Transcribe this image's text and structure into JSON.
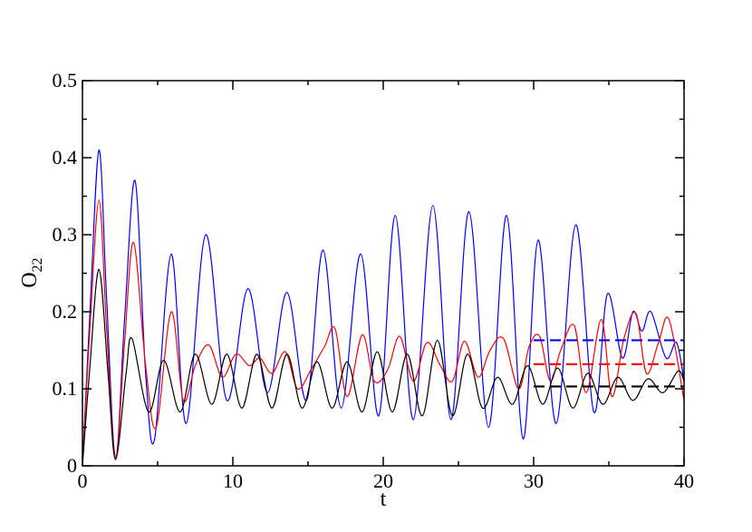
{
  "chart_data": {
    "type": "line",
    "xlabel": "t",
    "ylabel": "O",
    "ylabel_subscript": "22",
    "xlim": [
      0,
      40
    ],
    "ylim": [
      0,
      0.5
    ],
    "x_ticks": [
      0,
      10,
      20,
      30,
      40
    ],
    "x_tick_labels": [
      "0",
      "10",
      "20",
      "30",
      "40"
    ],
    "y_ticks": [
      0,
      0.1,
      0.2,
      0.3,
      0.4,
      0.5
    ],
    "y_tick_labels": [
      "0",
      "0.1",
      "0.2",
      "0.3",
      "0.4",
      "0.5"
    ],
    "grid": false,
    "legend": "none",
    "series": [
      {
        "color": "#0000ff",
        "style": "solid",
        "x": [
          0,
          0.5,
          1.1,
          1.6,
          2.2,
          2.8,
          3.5,
          4.2,
          4.8,
          5.9,
          6.9,
          8.2,
          9.6,
          11.0,
          12.3,
          13.6,
          14.9,
          16.0,
          17.2,
          18.5,
          19.7,
          20.8,
          22.0,
          23.3,
          24.5,
          25.7,
          27.0,
          28.2,
          29.3,
          30.3,
          31.5,
          32.8,
          34.0,
          34.9,
          35.9,
          36.6,
          37.2,
          37.8,
          38.8,
          39.5,
          40
        ],
        "y": [
          0,
          0.2,
          0.41,
          0.22,
          0.01,
          0.19,
          0.37,
          0.12,
          0.035,
          0.275,
          0.055,
          0.3,
          0.085,
          0.23,
          0.095,
          0.225,
          0.085,
          0.28,
          0.075,
          0.275,
          0.065,
          0.325,
          0.06,
          0.338,
          0.06,
          0.33,
          0.05,
          0.325,
          0.035,
          0.293,
          0.055,
          0.313,
          0.07,
          0.223,
          0.14,
          0.2,
          0.175,
          0.2,
          0.14,
          0.16,
          0.11
        ]
      },
      {
        "color": "#ff0000",
        "style": "solid",
        "x": [
          0,
          0.5,
          1.1,
          1.6,
          2.2,
          2.8,
          3.4,
          4.2,
          4.9,
          5.9,
          6.7,
          7.5,
          8.4,
          9.3,
          10.2,
          11.1,
          11.8,
          12.6,
          13.5,
          14.3,
          15.2,
          16.1,
          16.8,
          17.6,
          18.6,
          19.4,
          20.3,
          21.1,
          22.0,
          22.9,
          23.8,
          24.6,
          25.4,
          26.3,
          27.1,
          28.0,
          29.0,
          29.7,
          30.4,
          31.1,
          31.8,
          32.7,
          33.5,
          34.5,
          35.2,
          36.0,
          36.8,
          37.5,
          38.3,
          39.0,
          40
        ],
        "y": [
          0,
          0.18,
          0.345,
          0.18,
          0.01,
          0.16,
          0.29,
          0.13,
          0.05,
          0.2,
          0.085,
          0.13,
          0.157,
          0.115,
          0.145,
          0.13,
          0.14,
          0.12,
          0.148,
          0.1,
          0.125,
          0.155,
          0.178,
          0.09,
          0.17,
          0.11,
          0.125,
          0.168,
          0.11,
          0.16,
          0.13,
          0.11,
          0.162,
          0.115,
          0.15,
          0.165,
          0.1,
          0.155,
          0.168,
          0.11,
          0.15,
          0.182,
          0.095,
          0.19,
          0.09,
          0.165,
          0.198,
          0.12,
          0.16,
          0.19,
          0.085
        ]
      },
      {
        "color": "#000000",
        "style": "solid",
        "x": [
          0,
          0.5,
          1.1,
          1.7,
          2.2,
          2.9,
          3.3,
          4.4,
          5.4,
          6.5,
          7.5,
          8.6,
          9.6,
          10.6,
          11.6,
          12.6,
          13.6,
          14.6,
          15.6,
          16.6,
          17.6,
          18.6,
          19.6,
          20.6,
          21.6,
          22.6,
          23.6,
          24.6,
          25.6,
          26.6,
          27.6,
          28.6,
          29.6,
          30.6,
          31.6,
          32.6,
          33.6,
          34.6,
          35.6,
          36.6,
          37.6,
          38.6,
          39.6,
          40
        ],
        "y": [
          0,
          0.13,
          0.255,
          0.12,
          0.008,
          0.12,
          0.165,
          0.07,
          0.137,
          0.07,
          0.145,
          0.08,
          0.145,
          0.075,
          0.145,
          0.075,
          0.145,
          0.075,
          0.135,
          0.075,
          0.135,
          0.07,
          0.148,
          0.07,
          0.145,
          0.065,
          0.163,
          0.065,
          0.145,
          0.075,
          0.115,
          0.08,
          0.13,
          0.08,
          0.127,
          0.075,
          0.12,
          0.08,
          0.115,
          0.085,
          0.113,
          0.095,
          0.123,
          0.11
        ]
      },
      {
        "color": "#0000ff",
        "style": "dashed",
        "x": [
          30,
          40
        ],
        "y": [
          0.163,
          0.163
        ]
      },
      {
        "color": "#ff0000",
        "style": "dashed",
        "x": [
          30,
          40
        ],
        "y": [
          0.132,
          0.132
        ]
      },
      {
        "color": "#000000",
        "style": "dashed",
        "x": [
          30,
          40
        ],
        "y": [
          0.103,
          0.103
        ]
      }
    ]
  }
}
